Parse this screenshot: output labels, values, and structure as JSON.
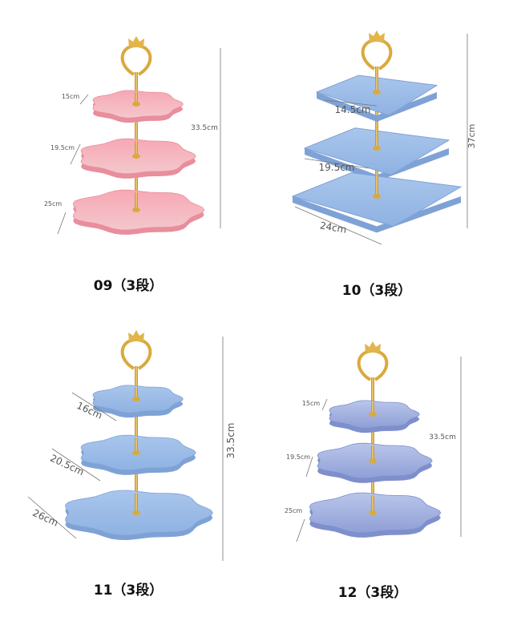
{
  "products": [
    {
      "label": "09（3段）",
      "sizes": [
        "15cm",
        "19.5cm",
        "25cm"
      ],
      "height": "33.5cm"
    },
    {
      "label": "10（3段）",
      "sizes": [
        "14.5cm",
        "19.5cm",
        "24cm"
      ],
      "height": "37cm"
    },
    {
      "label": "11（3段）",
      "sizes": [
        "16cm",
        "20.5cm",
        "26cm"
      ],
      "height": "33.5cm"
    },
    {
      "label": "12（3段）",
      "sizes": [
        "15cm",
        "19.5cm",
        "25cm"
      ],
      "height": "33.5cm"
    }
  ]
}
